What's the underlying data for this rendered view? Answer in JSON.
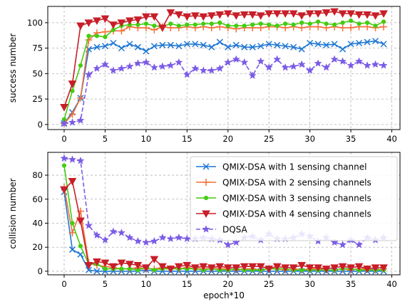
{
  "chart_data": [
    {
      "type": "line",
      "title": "",
      "xlabel": "",
      "ylabel": "success number",
      "xlim": [
        -2.0,
        41.0
      ],
      "ylim": [
        -5,
        116
      ],
      "xticks": [
        0,
        5,
        10,
        15,
        20,
        25,
        30,
        35,
        40
      ],
      "yticks": [
        0,
        25,
        50,
        75,
        100
      ],
      "grid": true,
      "x": [
        0,
        1,
        2,
        3,
        4,
        5,
        6,
        7,
        8,
        9,
        10,
        11,
        12,
        13,
        14,
        15,
        16,
        17,
        18,
        19,
        20,
        21,
        22,
        23,
        24,
        25,
        26,
        27,
        28,
        29,
        30,
        31,
        32,
        33,
        34,
        35,
        36,
        37,
        38,
        39
      ],
      "series": [
        {
          "name": "QMIX-DSA with 1 sensing channel",
          "color": "#1f77d4",
          "marker": "x",
          "values": [
            1,
            12,
            26,
            74,
            76,
            77,
            80,
            75,
            79,
            76,
            72,
            77,
            78,
            78,
            77,
            79,
            79,
            78,
            76,
            81,
            76,
            78,
            76,
            76,
            77,
            79,
            78,
            77,
            76,
            74,
            80,
            79,
            78,
            79,
            74,
            79,
            80,
            81,
            82,
            79
          ]
        },
        {
          "name": "QMIX-DSA with 2 sensing channels",
          "color": "#f4703a",
          "marker": "+",
          "values": [
            1,
            10,
            26,
            83,
            90,
            91,
            92,
            92,
            96,
            95,
            95,
            93,
            96,
            95,
            95,
            96,
            95,
            96,
            95,
            96,
            95,
            94,
            95,
            95,
            95,
            96,
            96,
            95,
            96,
            95,
            96,
            96,
            95,
            96,
            95,
            95,
            96,
            96,
            95,
            96
          ]
        },
        {
          "name": "QMIX-DSA with 3 sensing channels",
          "color": "#44cc11",
          "marker": "o",
          "values": [
            5,
            33,
            58,
            87,
            87,
            86,
            93,
            97,
            98,
            98,
            99,
            97,
            96,
            99,
            97,
            98,
            98,
            99,
            99,
            100,
            97,
            97,
            97,
            98,
            99,
            98,
            97,
            99,
            98,
            100,
            99,
            101,
            99,
            98,
            100,
            102,
            99,
            100,
            97,
            101
          ]
        },
        {
          "name": "QMIX-DSA with 4 sensing channels",
          "color": "#c81e28",
          "marker": "v",
          "values": [
            17,
            40,
            97,
            100,
            102,
            104,
            98,
            100,
            102,
            103,
            106,
            106,
            95,
            110,
            108,
            106,
            107,
            106,
            107,
            108,
            109,
            107,
            108,
            108,
            107,
            109,
            109,
            109,
            109,
            107,
            109,
            109,
            110,
            111,
            109,
            109,
            108,
            108,
            107,
            109
          ]
        },
        {
          "name": "DQSA",
          "color": "#7b5be6",
          "marker": "*",
          "values": [
            1,
            2,
            4,
            49,
            55,
            59,
            53,
            55,
            57,
            60,
            61,
            56,
            57,
            58,
            61,
            49,
            55,
            53,
            53,
            55,
            61,
            64,
            61,
            48,
            62,
            56,
            64,
            56,
            57,
            59,
            53,
            60,
            56,
            64,
            62,
            58,
            62,
            58,
            59,
            58
          ]
        }
      ]
    },
    {
      "type": "line",
      "title": "",
      "xlabel": "epoch*10",
      "ylabel": "collision number",
      "xlim": [
        -2.0,
        41.0
      ],
      "ylim": [
        -3,
        99
      ],
      "xticks": [
        0,
        5,
        10,
        15,
        20,
        25,
        30,
        35,
        40
      ],
      "yticks": [
        0,
        20,
        40,
        60,
        80
      ],
      "grid": true,
      "legend": "top-right",
      "x": [
        0,
        1,
        2,
        3,
        4,
        5,
        6,
        7,
        8,
        9,
        10,
        11,
        12,
        13,
        14,
        15,
        16,
        17,
        18,
        19,
        20,
        21,
        22,
        23,
        24,
        25,
        26,
        27,
        28,
        29,
        30,
        31,
        32,
        33,
        34,
        35,
        36,
        37,
        38,
        39
      ],
      "series": [
        {
          "name": "QMIX-DSA with 1 sensing channel",
          "color": "#1f77d4",
          "marker": "x",
          "values": [
            66,
            18,
            14,
            1,
            0,
            0,
            0,
            0,
            0,
            0,
            1,
            0,
            0,
            0,
            0,
            0,
            0,
            0,
            0,
            0,
            0,
            0,
            0,
            0,
            0,
            0,
            0,
            0,
            0,
            0,
            0,
            0,
            0,
            0,
            0,
            0,
            0,
            0,
            0,
            0
          ]
        },
        {
          "name": "QMIX-DSA with 2 sensing channels",
          "color": "#f4703a",
          "marker": "+",
          "values": [
            70,
            32,
            50,
            7,
            5,
            4,
            3,
            2,
            2,
            3,
            2,
            2,
            3,
            2,
            2,
            3,
            2,
            2,
            2,
            2,
            2,
            1,
            2,
            2,
            1,
            2,
            2,
            1,
            2,
            1,
            2,
            2,
            1,
            1,
            2,
            1,
            2,
            2,
            1,
            2
          ]
        },
        {
          "name": "QMIX-DSA with 3 sensing channels",
          "color": "#44cc11",
          "marker": "o",
          "values": [
            88,
            40,
            21,
            6,
            6,
            2,
            2,
            2,
            2,
            1,
            3,
            1,
            2,
            2,
            2,
            2,
            2,
            1,
            2,
            1,
            1,
            2,
            1,
            1,
            1,
            2,
            2,
            2,
            1,
            1,
            1,
            1,
            1,
            1,
            2,
            2,
            1,
            1,
            1,
            1
          ]
        },
        {
          "name": "QMIX-DSA with 4 sensing channels",
          "color": "#c81e28",
          "marker": "v",
          "values": [
            68,
            75,
            42,
            5,
            8,
            7,
            4,
            7,
            6,
            5,
            3,
            10,
            4,
            2,
            4,
            5,
            3,
            4,
            3,
            4,
            3,
            3,
            4,
            4,
            4,
            2,
            4,
            3,
            3,
            5,
            3,
            3,
            2,
            3,
            4,
            3,
            4,
            2,
            3,
            3
          ]
        },
        {
          "name": "DQSA",
          "color": "#7b5be6",
          "marker": "*",
          "values": [
            94,
            93,
            92,
            38,
            30,
            26,
            33,
            32,
            28,
            25,
            24,
            25,
            28,
            27,
            28,
            27,
            27,
            28,
            27,
            26,
            22,
            24,
            28,
            29,
            26,
            31,
            27,
            27,
            28,
            31,
            29,
            25,
            28,
            24,
            22,
            26,
            22,
            28,
            26,
            28
          ]
        }
      ]
    }
  ]
}
